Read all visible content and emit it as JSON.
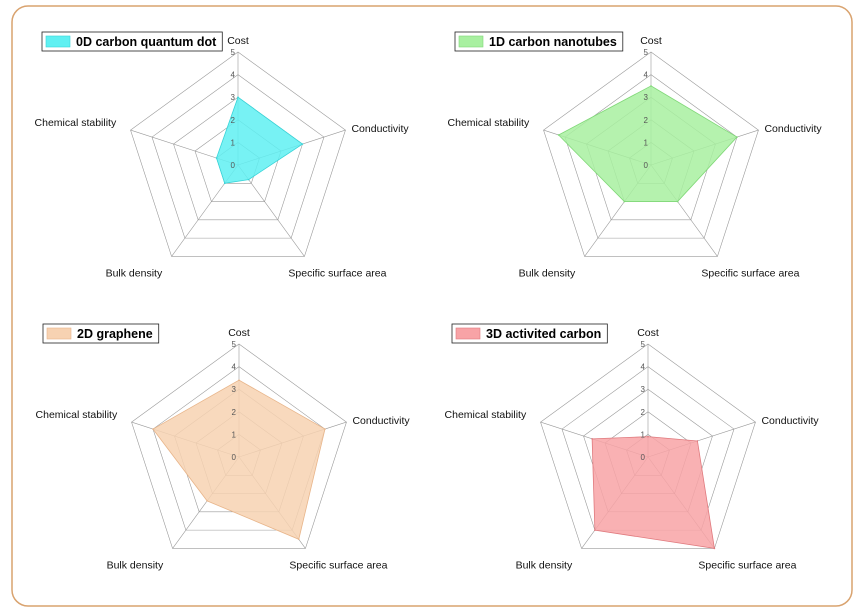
{
  "frame_color": "#d9a36f",
  "chart_data": [
    {
      "type": "radar",
      "title": "0D carbon quantum dot",
      "axes": [
        "Cost",
        "Conductivity",
        "Specific surface area",
        "Bulk density",
        "Chemical stability"
      ],
      "tick_labels": [
        "0",
        "1",
        "2",
        "3",
        "4",
        "5"
      ],
      "range": [
        0,
        5
      ],
      "grid": true,
      "legend": "top-left",
      "values": [
        3,
        3,
        0.8,
        1,
        1
      ],
      "fill": "#5ff0f2",
      "stroke": "#38d4d8"
    },
    {
      "type": "radar",
      "title": "1D carbon nanotubes",
      "axes": [
        "Cost",
        "Conductivity",
        "Specific surface area",
        "Bulk density",
        "Chemical stability"
      ],
      "tick_labels": [
        "0",
        "1",
        "2",
        "3",
        "4",
        "5"
      ],
      "range": [
        0,
        5
      ],
      "grid": true,
      "legend": "top-left",
      "values": [
        3.5,
        4,
        2,
        2,
        4.3
      ],
      "fill": "#a8f0a0",
      "stroke": "#80d878"
    },
    {
      "type": "radar",
      "title": "2D graphene",
      "axes": [
        "Cost",
        "Conductivity",
        "Specific surface area",
        "Bulk density",
        "Chemical stability"
      ],
      "tick_labels": [
        "0",
        "1",
        "2",
        "3",
        "4",
        "5"
      ],
      "range": [
        0,
        5
      ],
      "grid": true,
      "legend": "top-left",
      "values": [
        3.4,
        4,
        4.5,
        2.4,
        4
      ],
      "fill": "#f7d2b2",
      "stroke": "#e8b58a"
    },
    {
      "type": "radar",
      "title": "3D activited carbon",
      "axes": [
        "Cost",
        "Conductivity",
        "Specific surface area",
        "Bulk density",
        "Chemical stability"
      ],
      "tick_labels": [
        "0",
        "1",
        "2",
        "3",
        "4",
        "5"
      ],
      "range": [
        0,
        5
      ],
      "grid": true,
      "legend": "top-left",
      "values": [
        0.9,
        2.3,
        5,
        4,
        2.6
      ],
      "fill": "#f8a3a6",
      "stroke": "#e07a7e"
    }
  ]
}
